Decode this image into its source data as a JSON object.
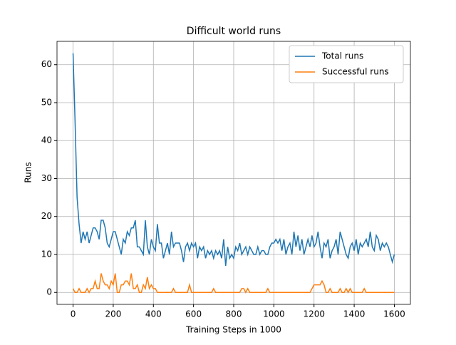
{
  "chart_data": {
    "type": "line",
    "title": "Difficult world runs",
    "xlabel": "Training Steps in 1000",
    "ylabel": "Runs",
    "x": [
      0,
      10,
      20,
      30,
      40,
      50,
      60,
      70,
      80,
      90,
      100,
      110,
      120,
      130,
      140,
      150,
      160,
      170,
      180,
      190,
      200,
      210,
      220,
      230,
      240,
      250,
      260,
      270,
      280,
      290,
      300,
      310,
      320,
      330,
      340,
      350,
      360,
      370,
      380,
      390,
      400,
      410,
      420,
      430,
      440,
      450,
      460,
      470,
      480,
      490,
      500,
      510,
      520,
      530,
      540,
      550,
      560,
      570,
      580,
      590,
      600,
      610,
      620,
      630,
      640,
      650,
      660,
      670,
      680,
      690,
      700,
      710,
      720,
      730,
      740,
      750,
      760,
      770,
      780,
      790,
      800,
      810,
      820,
      830,
      840,
      850,
      860,
      870,
      880,
      890,
      900,
      910,
      920,
      930,
      940,
      950,
      960,
      970,
      980,
      990,
      1000,
      1010,
      1020,
      1030,
      1040,
      1050,
      1060,
      1070,
      1080,
      1090,
      1100,
      1110,
      1120,
      1130,
      1140,
      1150,
      1160,
      1170,
      1180,
      1190,
      1200,
      1210,
      1220,
      1230,
      1240,
      1250,
      1260,
      1270,
      1280,
      1290,
      1300,
      1310,
      1320,
      1330,
      1340,
      1350,
      1360,
      1370,
      1380,
      1390,
      1400,
      1410,
      1420,
      1430,
      1440,
      1450,
      1460,
      1470,
      1480,
      1490,
      1500,
      1510,
      1520,
      1530,
      1540,
      1550,
      1560,
      1570,
      1580,
      1590,
      1600
    ],
    "series": [
      {
        "name": "Total runs",
        "color": "#1f77b4",
        "values": [
          63,
          45,
          25,
          18,
          13,
          16,
          14,
          16,
          13,
          15,
          17,
          17,
          16,
          14,
          19,
          19,
          17,
          13,
          12,
          14,
          16,
          16,
          14,
          12,
          10,
          14,
          13,
          16,
          15,
          17,
          17,
          19,
          12,
          12,
          11,
          10,
          19,
          12,
          10,
          14,
          12,
          11,
          18,
          13,
          13,
          9,
          11,
          13,
          10,
          16,
          12,
          13,
          13,
          13,
          11,
          8,
          12,
          13,
          11,
          13,
          12,
          13,
          9,
          12,
          11,
          12,
          9,
          11,
          10,
          11,
          9,
          11,
          10,
          11,
          9,
          14,
          7,
          12,
          9,
          10,
          9,
          12,
          11,
          13,
          10,
          11,
          12,
          10,
          12,
          11,
          10,
          10,
          12,
          10,
          11,
          11,
          10,
          10,
          12,
          13,
          13,
          14,
          13,
          14,
          11,
          14,
          10,
          12,
          13,
          10,
          16,
          12,
          15,
          11,
          14,
          10,
          12,
          14,
          12,
          15,
          12,
          13,
          16,
          12,
          9,
          13,
          12,
          14,
          9,
          11,
          12,
          14,
          10,
          16,
          14,
          12,
          10,
          9,
          12,
          13,
          11,
          14,
          10,
          13,
          12,
          13,
          14,
          12,
          16,
          12,
          11,
          15,
          14,
          11,
          13,
          12,
          13,
          12,
          10,
          8,
          10
        ]
      },
      {
        "name": "Successful runs",
        "color": "#ff7f0e",
        "values": [
          1,
          0,
          0,
          1,
          0,
          0,
          0,
          1,
          0,
          1,
          1,
          3,
          1,
          1,
          5,
          3,
          2,
          2,
          1,
          3,
          2,
          5,
          0,
          0,
          2,
          2,
          3,
          3,
          2,
          5,
          1,
          1,
          2,
          0,
          0,
          2,
          1,
          4,
          1,
          2,
          1,
          1,
          0,
          0,
          0,
          0,
          0,
          0,
          0,
          0,
          1,
          0,
          0,
          0,
          0,
          0,
          0,
          0,
          2,
          0,
          0,
          0,
          0,
          0,
          0,
          0,
          0,
          0,
          0,
          0,
          1,
          0,
          0,
          0,
          0,
          0,
          0,
          0,
          0,
          0,
          0,
          0,
          0,
          0,
          1,
          1,
          0,
          1,
          0,
          0,
          0,
          0,
          0,
          0,
          0,
          0,
          0,
          1,
          0,
          0,
          0,
          0,
          0,
          0,
          0,
          0,
          0,
          0,
          0,
          0,
          0,
          0,
          0,
          0,
          0,
          0,
          0,
          0,
          0,
          1,
          2,
          2,
          2,
          2,
          3,
          2,
          0,
          0,
          1,
          0,
          0,
          0,
          0,
          1,
          0,
          0,
          1,
          0,
          1,
          0,
          0,
          0,
          0,
          0,
          0,
          1,
          0,
          0,
          0,
          0,
          0,
          0,
          0,
          0,
          0,
          0,
          0,
          0,
          0,
          0,
          0
        ]
      }
    ],
    "xlim": [
      -80,
      1680
    ],
    "ylim": [
      -3.15,
      66.15
    ],
    "xticks": [
      0,
      200,
      400,
      600,
      800,
      1000,
      1200,
      1400,
      1600
    ],
    "yticks": [
      0,
      10,
      20,
      30,
      40,
      50,
      60
    ],
    "grid": true,
    "legend": "upper right"
  }
}
